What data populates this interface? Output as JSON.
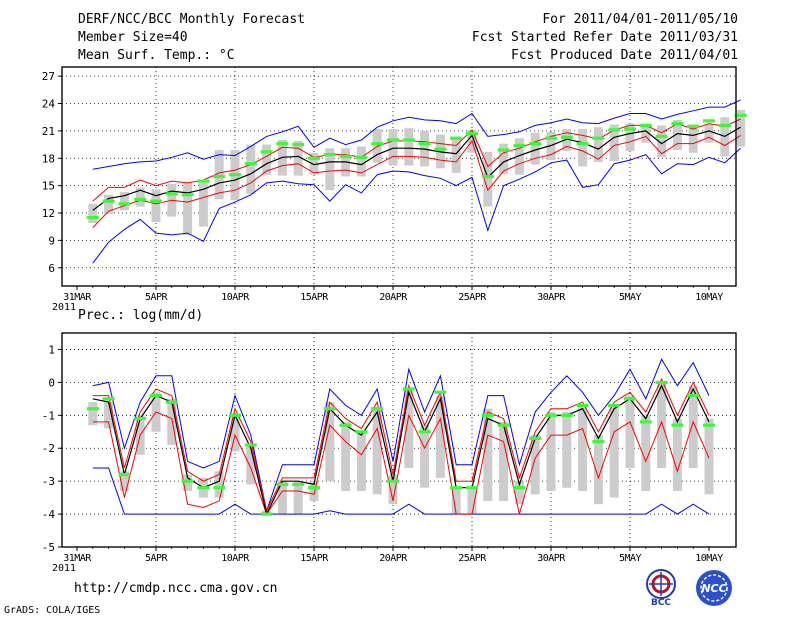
{
  "header": {
    "title_left_1": "DERF/NCC/BCC Monthly Forecast",
    "title_left_2": "Member Size=40",
    "title_left_3": "Mean Surf. Temp.: °C",
    "title_right_1": "For 2011/04/01-2011/05/10",
    "title_right_2": "Fcst Started Refer Date 2011/03/31",
    "title_right_3": "Fcst Produced Date 2011/04/01"
  },
  "footer": {
    "url": "http://cmdp.ncc.cma.gov.cn",
    "grads": "GrADS: COLA/IGES",
    "logo_left": "BCC",
    "logo_right": "NCC"
  },
  "colors": {
    "frame": "#000000",
    "mean": "#000000",
    "inner": "#ff0000",
    "outer": "#0000ff",
    "bar": "#cccccc",
    "marker": "#33ff33"
  },
  "chart_data": [
    {
      "type": "line",
      "title": "Mean Surf. Temp.: °C",
      "x_tick_labels": [
        "31MAR",
        "5APR",
        "10APR",
        "15APR",
        "20APR",
        "25APR",
        "30APR",
        "5MAY",
        "10MAY"
      ],
      "x_tick_sublabel": "2011",
      "x_range_days": [
        0,
        40
      ],
      "ylim": [
        4,
        28
      ],
      "yticks": [
        "27",
        "24",
        "21",
        "18",
        "15",
        "12",
        "9",
        "6"
      ],
      "grid": true,
      "series": [
        {
          "name": "mean",
          "values": [
            12.3,
            13.6,
            13.9,
            14.5,
            13.9,
            14.4,
            14.2,
            14.6,
            15.3,
            15.6,
            16.3,
            17.4,
            18.1,
            18.2,
            17.3,
            17.6,
            17.6,
            17.3,
            18.4,
            19.1,
            19.1,
            19.0,
            18.7,
            18.5,
            20.5,
            15.9,
            17.6,
            18.3,
            18.9,
            19.4,
            20.1,
            19.7,
            19.0,
            20.3,
            20.7,
            21.0,
            19.6,
            20.7,
            20.5,
            21.0,
            20.4,
            21.4
          ]
        },
        {
          "name": "upper_inner",
          "values": [
            13.3,
            14.8,
            14.8,
            15.6,
            15.0,
            15.5,
            15.3,
            15.6,
            16.4,
            16.7,
            17.3,
            18.2,
            19.2,
            19.1,
            18.1,
            18.4,
            18.4,
            18.1,
            19.3,
            19.9,
            19.9,
            19.8,
            19.6,
            19.4,
            21.1,
            17.1,
            18.6,
            19.1,
            19.8,
            20.4,
            20.8,
            20.5,
            20.1,
            21.1,
            21.6,
            21.6,
            20.8,
            21.8,
            21.2,
            21.8,
            21.5,
            22.3
          ]
        },
        {
          "name": "lower_inner",
          "values": [
            10.4,
            12.2,
            12.8,
            13.4,
            13.0,
            13.4,
            13.2,
            13.7,
            14.2,
            14.5,
            15.3,
            16.6,
            17.2,
            17.4,
            16.4,
            16.6,
            16.7,
            16.4,
            17.3,
            18.2,
            18.2,
            18.1,
            17.8,
            17.6,
            19.9,
            14.5,
            16.6,
            17.4,
            18.0,
            18.4,
            19.3,
            18.8,
            17.9,
            19.4,
            19.8,
            20.4,
            18.5,
            19.6,
            19.6,
            20.3,
            19.4,
            20.5
          ]
        },
        {
          "name": "upper_outer",
          "values": [
            16.8,
            17.1,
            17.4,
            17.6,
            17.7,
            18.1,
            18.6,
            17.9,
            18.4,
            18.3,
            19.3,
            20.4,
            20.9,
            21.5,
            19.2,
            20.2,
            19.5,
            20.0,
            21.4,
            22.1,
            22.5,
            22.2,
            22.1,
            21.8,
            22.9,
            20.4,
            20.6,
            20.9,
            21.6,
            21.9,
            22.3,
            21.9,
            21.8,
            22.4,
            22.9,
            22.9,
            22.3,
            22.8,
            23.2,
            23.6,
            23.6,
            24.4
          ]
        },
        {
          "name": "lower_outer",
          "values": [
            6.5,
            8.8,
            10.2,
            11.3,
            9.8,
            9.6,
            9.8,
            8.9,
            12.5,
            13.2,
            14.0,
            15.3,
            15.5,
            15.2,
            15.1,
            13.3,
            15.1,
            14.2,
            16.2,
            16.6,
            16.5,
            16.1,
            15.8,
            15.0,
            15.9,
            10.1,
            15.0,
            15.7,
            16.5,
            17.5,
            17.8,
            14.8,
            15.1,
            17.4,
            17.8,
            18.4,
            16.3,
            17.4,
            17.3,
            18.1,
            17.5,
            19.1
          ]
        },
        {
          "name": "bar_top",
          "values": [
            13.0,
            14.0,
            14.3,
            14.8,
            14.6,
            15.2,
            15.3,
            15.3,
            18.9,
            18.9,
            19.5,
            19.5,
            20.0,
            19.9,
            18.6,
            19.1,
            19.1,
            19.3,
            21.2,
            21.2,
            21.3,
            21.0,
            20.6,
            20.3,
            21.1,
            18.7,
            19.6,
            20.2,
            20.8,
            20.9,
            21.2,
            21.2,
            21.4,
            21.7,
            21.8,
            21.8,
            21.6,
            22.2,
            21.7,
            21.7,
            22.5,
            23.3
          ]
        },
        {
          "name": "bar_bottom",
          "values": [
            10.9,
            11.9,
            12.3,
            12.7,
            11.0,
            11.6,
            9.6,
            10.5,
            13.5,
            13.4,
            14.1,
            16.2,
            16.1,
            16.1,
            16.2,
            14.5,
            16.0,
            16.0,
            17.5,
            17.2,
            17.2,
            17.1,
            16.9,
            16.4,
            18.6,
            12.7,
            16.3,
            16.2,
            17.3,
            17.8,
            18.8,
            17.1,
            17.6,
            17.7,
            18.8,
            19.7,
            18.1,
            18.9,
            18.6,
            19.7,
            18.2,
            19.3
          ]
        },
        {
          "name": "marker",
          "values": [
            11.5,
            13.3,
            13.0,
            13.5,
            13.3,
            14.1,
            14.0,
            15.5,
            16.0,
            16.2,
            17.4,
            18.7,
            19.6,
            19.5,
            18.0,
            18.4,
            18.2,
            18.1,
            19.6,
            20.0,
            20.0,
            19.6,
            19.0,
            20.2,
            20.7,
            16.0,
            18.9,
            19.4,
            19.6,
            20.2,
            20.3,
            19.6,
            20.2,
            21.1,
            21.2,
            21.6,
            20.4,
            21.8,
            21.5,
            22.1,
            21.6,
            22.7
          ]
        }
      ]
    },
    {
      "type": "line",
      "title": "Prec.: log(mm/d)",
      "x_tick_labels": [
        "31MAR",
        "5APR",
        "10APR",
        "15APR",
        "20APR",
        "25APR",
        "30APR",
        "5MAY",
        "10MAY"
      ],
      "x_tick_sublabel": "2011",
      "x_range_days": [
        0,
        40
      ],
      "ylim": [
        -5,
        1.5
      ],
      "yticks": [
        "1",
        "0",
        "-1",
        "-2",
        "-3",
        "-4",
        "-5"
      ],
      "grid": true,
      "series": [
        {
          "name": "mean",
          "values": [
            -0.5,
            -0.6,
            -2.8,
            -1.1,
            -0.4,
            -0.6,
            -2.9,
            -3.2,
            -3.0,
            -1.0,
            -2.0,
            -4.0,
            -3.0,
            -3.0,
            -3.1,
            -0.8,
            -1.3,
            -1.6,
            -0.9,
            -3.0,
            -0.3,
            -1.5,
            -0.5,
            -3.2,
            -3.2,
            -1.1,
            -1.3,
            -3.1,
            -1.7,
            -1.0,
            -1.0,
            -0.8,
            -1.7,
            -0.8,
            -0.5,
            -1.1,
            -0.1,
            -1.2,
            -0.2,
            -1.2
          ]
        },
        {
          "name": "upper_inner",
          "values": [
            -0.4,
            -0.4,
            -2.6,
            -0.9,
            -0.2,
            -0.4,
            -2.7,
            -3.0,
            -2.8,
            -0.8,
            -1.8,
            -3.9,
            -2.9,
            -2.9,
            -2.9,
            -0.6,
            -1.1,
            -1.4,
            -0.6,
            -2.8,
            -0.1,
            -1.3,
            -0.3,
            -3.0,
            -3.0,
            -0.9,
            -1.1,
            -2.9,
            -1.5,
            -0.8,
            -0.8,
            -0.6,
            -1.5,
            -0.6,
            -0.3,
            -0.9,
            0.1,
            -1.0,
            0.0,
            -1.0
          ]
        },
        {
          "name": "lower_inner",
          "values": [
            -1.2,
            -1.2,
            -3.5,
            -1.6,
            -0.9,
            -1.1,
            -3.7,
            -3.8,
            -3.6,
            -1.6,
            -2.6,
            -4.0,
            -3.3,
            -3.3,
            -3.4,
            -1.3,
            -1.8,
            -2.2,
            -1.4,
            -3.6,
            -1.0,
            -2.0,
            -1.1,
            -4.0,
            -4.0,
            -1.6,
            -1.8,
            -4.0,
            -2.3,
            -1.6,
            -1.6,
            -1.4,
            -2.9,
            -1.5,
            -1.2,
            -2.4,
            -1.2,
            -2.7,
            -1.2,
            -2.3
          ]
        },
        {
          "name": "upper_outer",
          "values": [
            -0.1,
            0.0,
            -2.0,
            -0.6,
            0.2,
            0.2,
            -2.4,
            -2.6,
            -2.4,
            -0.4,
            -1.6,
            -3.9,
            -2.5,
            -2.5,
            -2.5,
            -0.2,
            -0.7,
            -1.0,
            -0.2,
            -2.4,
            0.4,
            -0.9,
            0.2,
            -2.5,
            -2.5,
            -0.4,
            -0.4,
            -2.5,
            -0.9,
            -0.3,
            0.2,
            -0.3,
            -1.0,
            -0.4,
            0.4,
            -0.5,
            0.7,
            -0.1,
            0.6,
            -0.4
          ]
        },
        {
          "name": "lower_outer",
          "values": [
            -2.6,
            -2.6,
            -4.0,
            -4.0,
            -4.0,
            -4.0,
            -4.0,
            -4.0,
            -4.0,
            -3.7,
            -4.0,
            -4.0,
            -4.0,
            -4.0,
            -4.0,
            -3.9,
            -4.0,
            -4.0,
            -4.0,
            -4.0,
            -3.7,
            -4.0,
            -4.0,
            -4.0,
            -4.0,
            -4.0,
            -4.0,
            -4.0,
            -4.0,
            -4.0,
            -4.0,
            -4.0,
            -4.0,
            -4.0,
            -4.0,
            -4.0,
            -3.7,
            -4.0,
            -3.7,
            -4.0
          ]
        },
        {
          "name": "bar_top",
          "values": [
            -0.6,
            -0.6,
            -2.7,
            -1.0,
            -0.3,
            -0.5,
            -2.8,
            -2.9,
            -2.7,
            -1.0,
            -1.9,
            -3.9,
            -3.0,
            -3.0,
            -3.0,
            -0.6,
            -1.2,
            -1.5,
            -0.8,
            -2.8,
            -0.2,
            -1.3,
            -0.4,
            -3.2,
            -3.2,
            -0.8,
            -1.2,
            -3.0,
            -1.6,
            -0.9,
            -0.9,
            -0.7,
            -1.6,
            -0.7,
            -0.4,
            -1.0,
            0.0,
            -1.1,
            -0.1,
            -1.1
          ]
        },
        {
          "name": "bar_bottom",
          "values": [
            -1.3,
            -1.4,
            -3.3,
            -2.2,
            -1.5,
            -1.9,
            -3.3,
            -3.5,
            -3.5,
            -2.1,
            -3.1,
            -4.0,
            -4.0,
            -4.0,
            -3.6,
            -3.0,
            -3.3,
            -3.3,
            -3.4,
            -3.7,
            -2.6,
            -3.2,
            -2.9,
            -4.0,
            -4.0,
            -3.6,
            -3.6,
            -3.7,
            -3.4,
            -3.3,
            -3.2,
            -3.3,
            -3.7,
            -3.5,
            -2.6,
            -3.3,
            -2.6,
            -3.3,
            -2.6,
            -3.4
          ]
        },
        {
          "name": "marker",
          "values": [
            -0.8,
            -0.5,
            -2.8,
            -1.1,
            -0.4,
            -0.6,
            -3.0,
            -3.2,
            -3.2,
            -1.0,
            -1.9,
            -4.0,
            -3.1,
            -3.1,
            -3.2,
            -0.8,
            -1.3,
            -1.5,
            -0.8,
            -3.0,
            -0.2,
            -1.5,
            -0.3,
            -3.2,
            -3.2,
            -1.0,
            -1.3,
            -3.2,
            -1.7,
            -1.0,
            -1.0,
            -0.7,
            -1.8,
            -0.7,
            -0.5,
            -1.2,
            0.0,
            -1.3,
            -0.4,
            -1.3
          ]
        }
      ]
    }
  ]
}
